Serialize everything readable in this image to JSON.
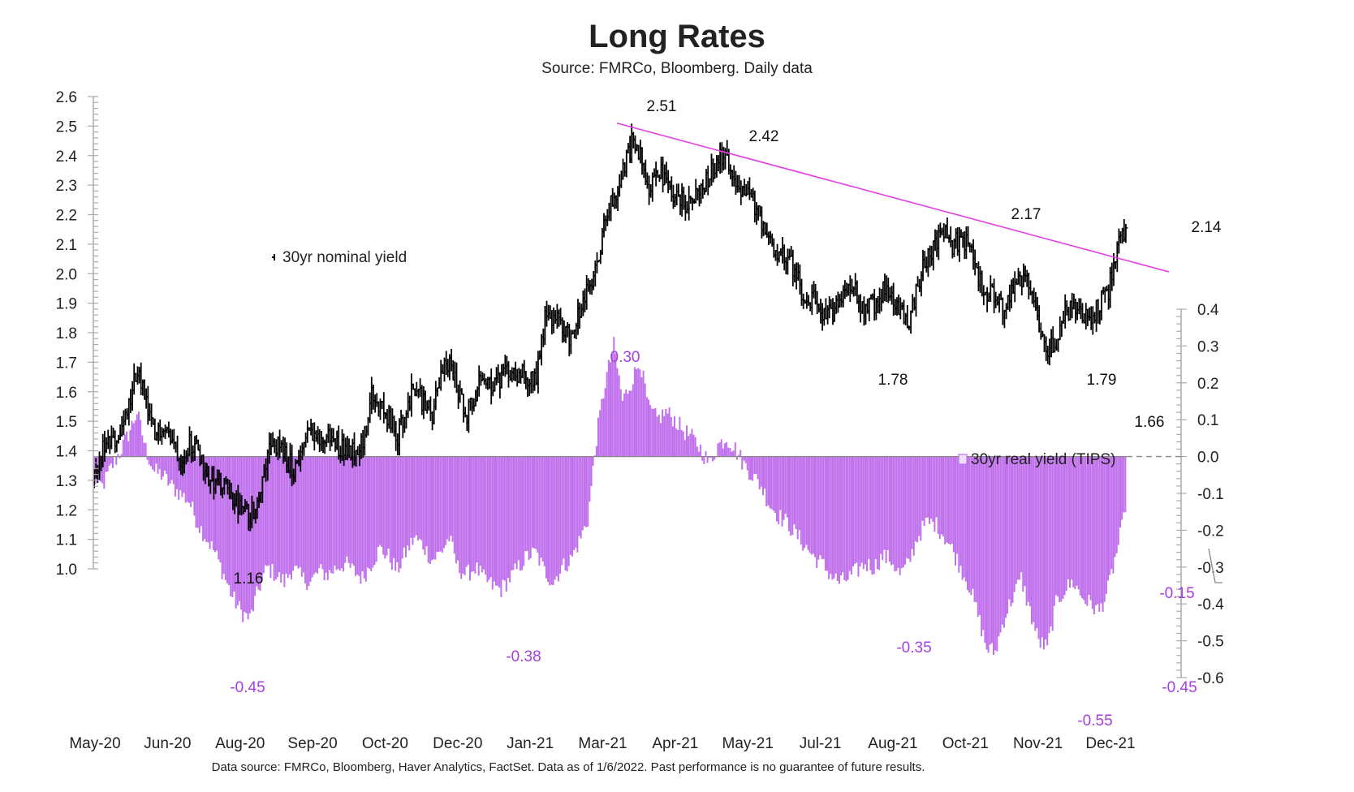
{
  "chart_data": {
    "type": "bar+ohlc",
    "title": "Long Rates",
    "subtitle": "Source: FMRCo, Bloomberg.  Daily data",
    "footnote": "Data source: FMRCo, Bloomberg, Haver Analytics, FactSet. Data as of 1/6/2022. Past performance is no guarantee of future results.",
    "left_axis": {
      "label": "30yr nominal yield",
      "ylim": [
        1.0,
        2.6
      ],
      "ticks": [
        "2.6",
        "2.5",
        "2.4",
        "2.3",
        "2.2",
        "2.1",
        "2.0",
        "1.9",
        "1.8",
        "1.7",
        "1.6",
        "1.5",
        "1.4",
        "1.3",
        "1.2",
        "1.1",
        "1.0"
      ]
    },
    "right_axis": {
      "label": "30yr real yield (TIPS)",
      "ylim": [
        -0.6,
        0.4
      ],
      "ticks": [
        "0.4",
        "0.3",
        "0.2",
        "0.1",
        "0.0",
        "-0.1",
        "-0.2",
        "-0.3",
        "-0.4",
        "-0.5",
        "-0.6"
      ]
    },
    "x_ticks": [
      "May-20",
      "Jun-20",
      "Aug-20",
      "Sep-20",
      "Oct-20",
      "Dec-20",
      "Jan-21",
      "Mar-21",
      "Apr-21",
      "May-21",
      "Jul-21",
      "Aug-21",
      "Oct-21",
      "Nov-21",
      "Dec-21"
    ],
    "legend": [
      {
        "name": "30yr nominal yield",
        "marker": "ohlc-bar",
        "color": "#000000"
      },
      {
        "name": "30yr real yield (TIPS)",
        "marker": "hollow-square",
        "color": "#c77ded"
      }
    ],
    "series": [
      {
        "name": "30yr nominal yield",
        "type": "ohlc",
        "weekly_close": [
          1.3,
          1.4,
          1.42,
          1.45,
          1.55,
          1.68,
          1.55,
          1.44,
          1.5,
          1.43,
          1.38,
          1.43,
          1.4,
          1.32,
          1.3,
          1.27,
          1.24,
          1.2,
          1.18,
          1.25,
          1.4,
          1.42,
          1.38,
          1.34,
          1.4,
          1.48,
          1.42,
          1.45,
          1.42,
          1.41,
          1.4,
          1.44,
          1.58,
          1.55,
          1.5,
          1.45,
          1.55,
          1.62,
          1.56,
          1.52,
          1.66,
          1.7,
          1.6,
          1.53,
          1.6,
          1.66,
          1.62,
          1.64,
          1.67,
          1.66,
          1.65,
          1.65,
          1.85,
          1.85,
          1.82,
          1.78,
          1.88,
          1.94,
          2.02,
          2.2,
          2.25,
          2.35,
          2.44,
          2.4,
          2.3,
          2.36,
          2.3,
          2.26,
          2.24,
          2.26,
          2.28,
          2.33,
          2.4,
          2.38,
          2.32,
          2.28,
          2.24,
          2.18,
          2.1,
          2.08,
          2.05,
          2.0,
          1.88,
          1.92,
          1.86,
          1.86,
          1.92,
          1.98,
          1.92,
          1.88,
          1.9,
          1.94,
          1.92,
          1.88,
          1.84,
          1.96,
          2.05,
          2.1,
          2.15,
          2.1,
          2.12,
          2.08,
          1.98,
          1.92,
          1.94,
          1.85,
          1.95,
          1.98,
          1.96,
          1.82,
          1.75,
          1.78,
          1.86,
          1.88,
          1.84,
          1.86,
          1.9,
          1.94,
          2.1,
          2.13
        ],
        "annotations": [
          {
            "label": "2.51",
            "value": 2.51,
            "kind": "high"
          },
          {
            "label": "2.42",
            "value": 2.42,
            "kind": "high"
          },
          {
            "label": "2.17",
            "value": 2.17,
            "kind": "high"
          },
          {
            "label": "2.14",
            "value": 2.14,
            "kind": "last"
          },
          {
            "label": "1.16",
            "value": 1.16,
            "kind": "low"
          },
          {
            "label": "1.78",
            "value": 1.78,
            "kind": "low"
          },
          {
            "label": "1.79",
            "value": 1.79,
            "kind": "low"
          },
          {
            "label": "1.66",
            "value": 1.66,
            "kind": "low"
          }
        ]
      },
      {
        "name": "30yr real yield (TIPS)",
        "type": "bar",
        "weekly_values": [
          -0.06,
          -0.08,
          -0.03,
          0.01,
          0.06,
          0.12,
          0.02,
          -0.04,
          -0.05,
          -0.08,
          -0.1,
          -0.12,
          -0.18,
          -0.22,
          -0.26,
          -0.32,
          -0.38,
          -0.42,
          -0.44,
          -0.36,
          -0.3,
          -0.32,
          -0.34,
          -0.3,
          -0.33,
          -0.34,
          -0.31,
          -0.32,
          -0.3,
          -0.29,
          -0.31,
          -0.33,
          -0.29,
          -0.25,
          -0.27,
          -0.31,
          -0.26,
          -0.22,
          -0.24,
          -0.28,
          -0.26,
          -0.22,
          -0.3,
          -0.32,
          -0.3,
          -0.33,
          -0.35,
          -0.36,
          -0.33,
          -0.3,
          -0.27,
          -0.26,
          -0.31,
          -0.34,
          -0.3,
          -0.28,
          -0.23,
          -0.17,
          0.05,
          0.2,
          0.3,
          0.15,
          0.2,
          0.26,
          0.13,
          0.1,
          0.12,
          0.1,
          0.07,
          0.05,
          0.02,
          -0.02,
          0.03,
          0.05,
          0.02,
          -0.02,
          -0.05,
          -0.08,
          -0.13,
          -0.16,
          -0.18,
          -0.21,
          -0.24,
          -0.27,
          -0.29,
          -0.32,
          -0.34,
          -0.33,
          -0.31,
          -0.29,
          -0.3,
          -0.27,
          -0.28,
          -0.32,
          -0.29,
          -0.22,
          -0.18,
          -0.18,
          -0.21,
          -0.25,
          -0.3,
          -0.35,
          -0.43,
          -0.52,
          -0.53,
          -0.44,
          -0.38,
          -0.33,
          -0.42,
          -0.5,
          -0.52,
          -0.4,
          -0.36,
          -0.34,
          -0.38,
          -0.4,
          -0.42,
          -0.36,
          -0.26,
          -0.15
        ],
        "annotations": [
          {
            "label": "0.30",
            "value": 0.3,
            "kind": "high"
          },
          {
            "label": "-0.45",
            "value": -0.45,
            "kind": "low"
          },
          {
            "label": "-0.38",
            "value": -0.38,
            "kind": "low"
          },
          {
            "label": "-0.35",
            "value": -0.35,
            "kind": "low"
          },
          {
            "label": "-0.55",
            "value": -0.55,
            "kind": "low"
          },
          {
            "label": "-0.45",
            "value": -0.45,
            "kind": "low"
          },
          {
            "label": "-0.15",
            "value": -0.15,
            "kind": "last"
          }
        ]
      }
    ],
    "trendline": {
      "from_value": 2.51,
      "to_value": 2.02,
      "color": "#e040e0"
    },
    "zero_line": {
      "value": 0.0,
      "style": "dashed"
    },
    "colors": {
      "nominal": "#000000",
      "real_fill": "#efe0fb",
      "real_stroke": "#c070ec",
      "trend": "#e23fe3",
      "annotation_purple": "#a63fe0",
      "axis": "#aaaaaa"
    }
  }
}
